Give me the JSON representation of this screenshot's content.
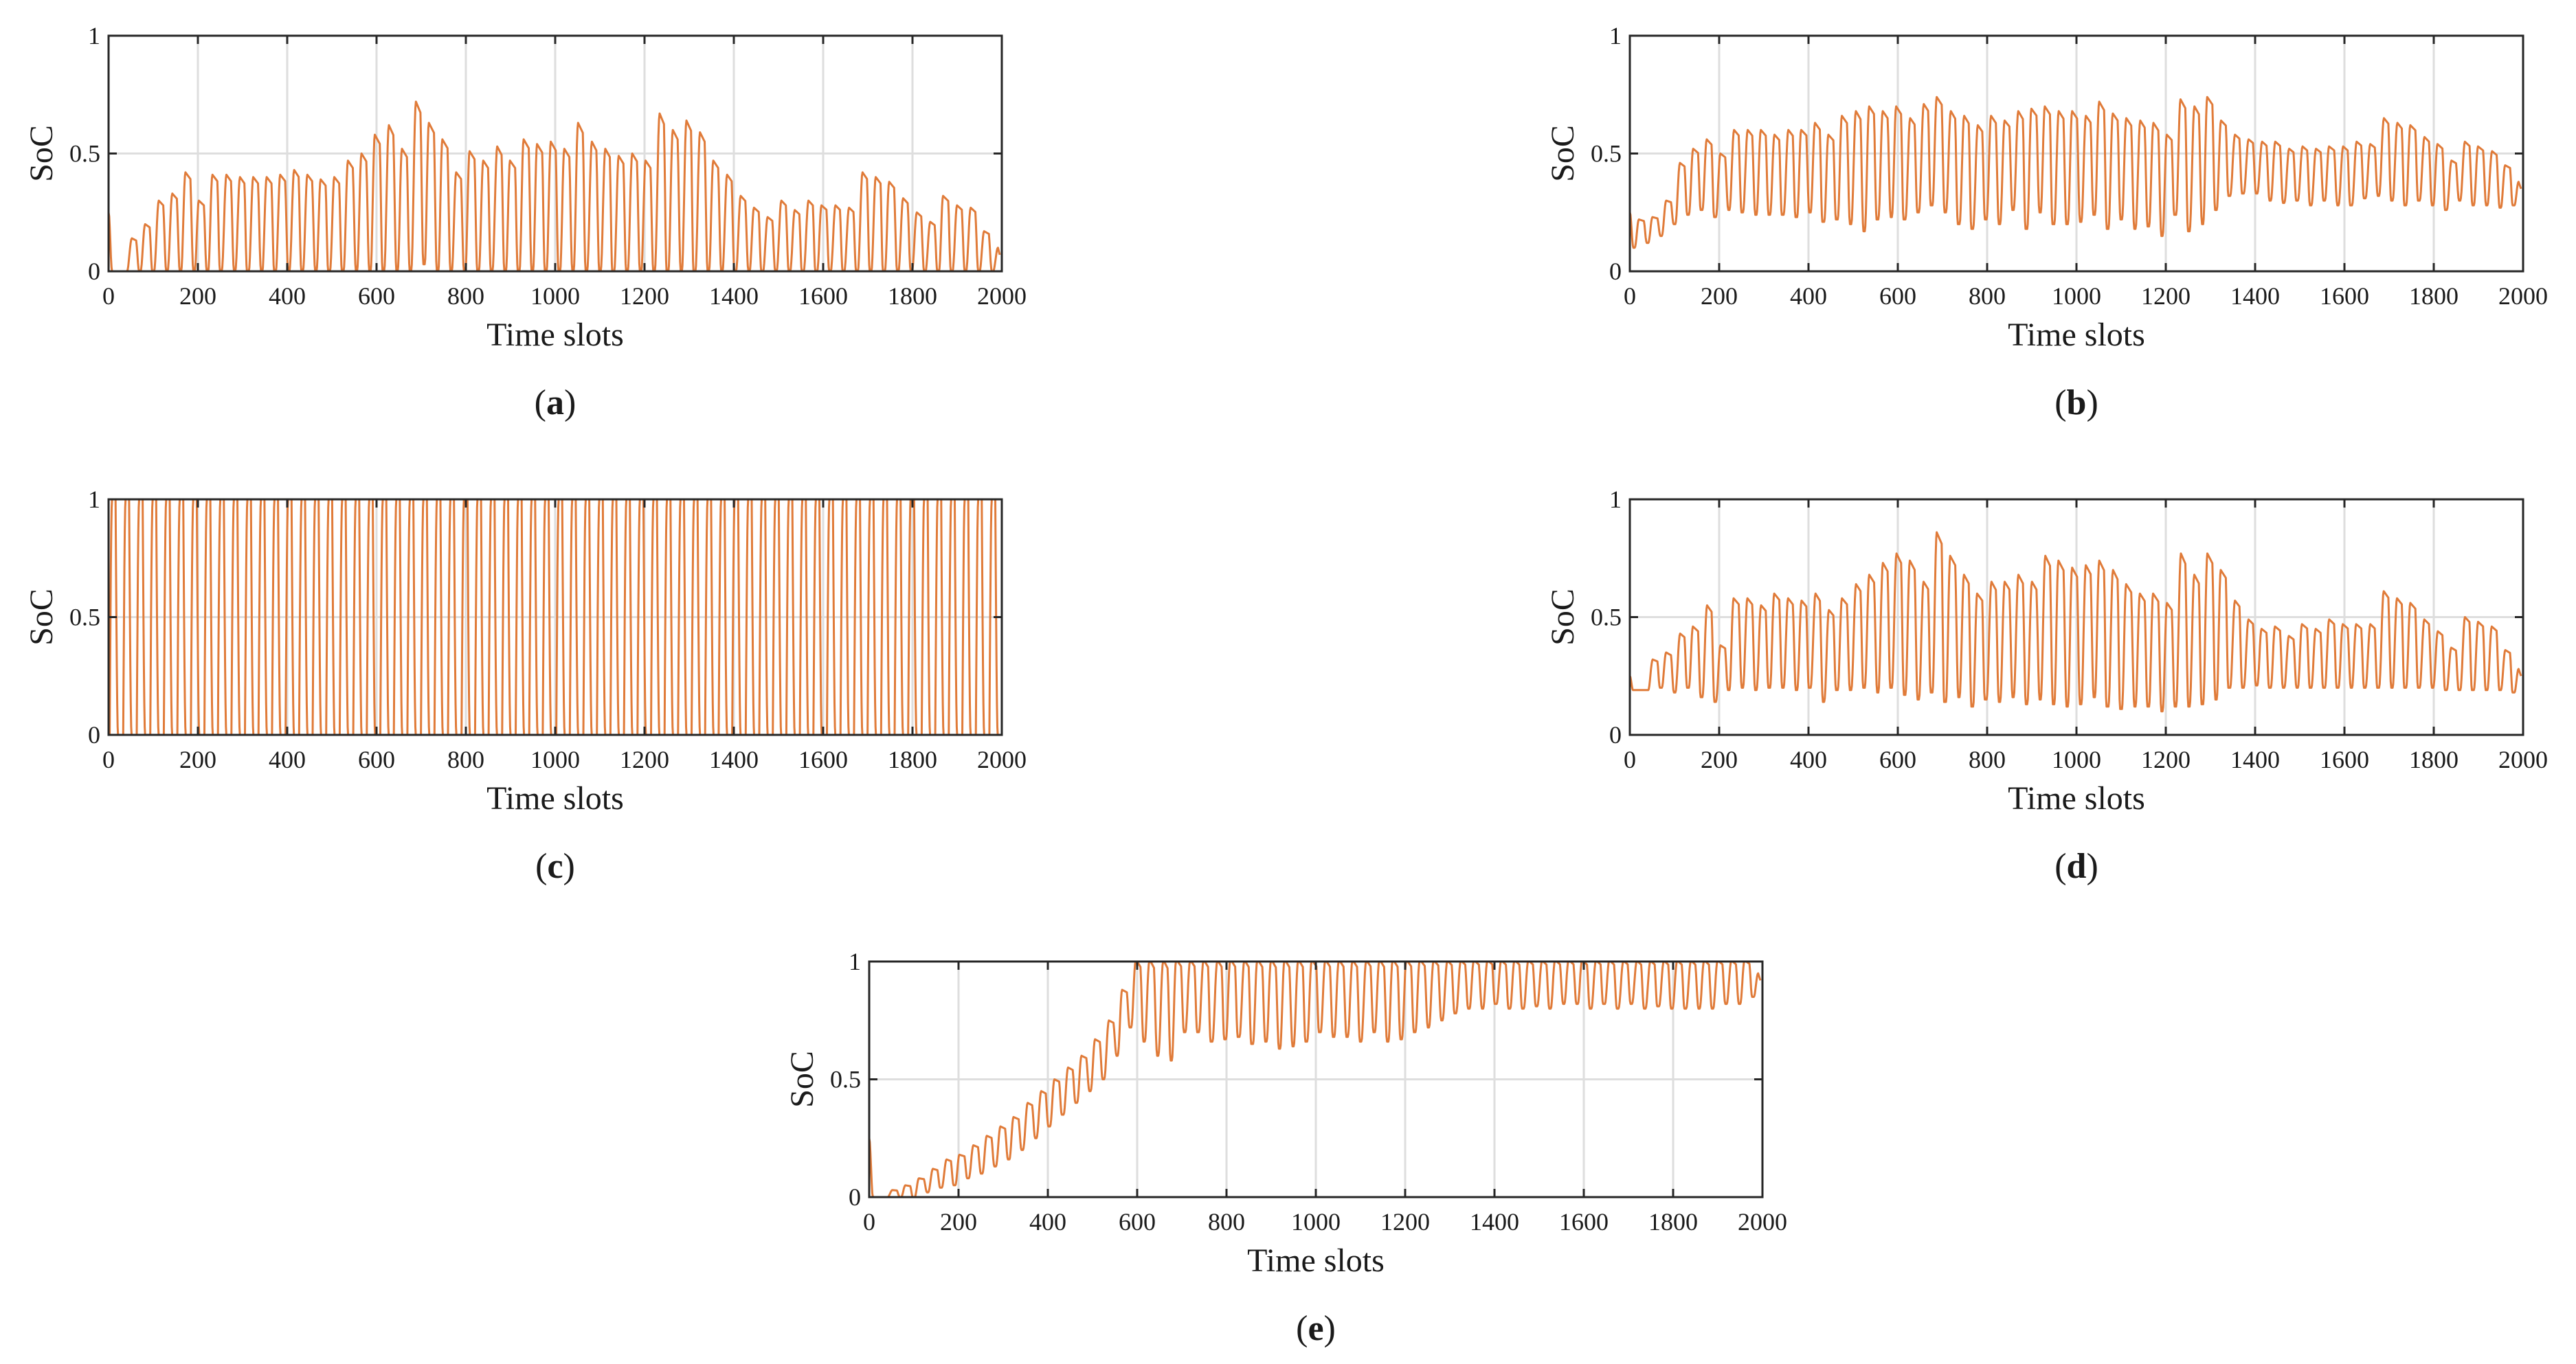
{
  "chart_data": [
    {
      "type": "line",
      "caption": "(a)",
      "xlabel": "Time slots",
      "ylabel": "SoC",
      "xlim": [
        0,
        2000
      ],
      "ylim": [
        0,
        1
      ],
      "xticks": [
        0,
        200,
        400,
        600,
        800,
        1000,
        1200,
        1400,
        1600,
        1800,
        2000
      ],
      "yticks": [
        0,
        0.5,
        1
      ],
      "grid": true,
      "series": [
        {
          "color": "#e07b39",
          "style": "daily-cycle",
          "start": 0.25,
          "peaks": [
            0.0,
            0.14,
            0.2,
            0.3,
            0.33,
            0.42,
            0.3,
            0.41,
            0.41,
            0.4,
            0.4,
            0.4,
            0.41,
            0.43,
            0.41,
            0.39,
            0.4,
            0.47,
            0.5,
            0.58,
            0.62,
            0.52,
            0.72,
            0.63,
            0.56,
            0.42,
            0.51,
            0.47,
            0.53,
            0.47,
            0.56,
            0.54,
            0.55,
            0.52,
            0.63,
            0.55,
            0.52,
            0.49,
            0.5,
            0.47,
            0.67,
            0.6,
            0.64,
            0.59,
            0.47,
            0.41,
            0.32,
            0.27,
            0.23,
            0.3,
            0.26,
            0.3,
            0.28,
            0.28,
            0.27,
            0.42,
            0.4,
            0.38,
            0.31,
            0.25,
            0.21,
            0.32,
            0.28,
            0.27,
            0.17,
            0.1
          ],
          "troughs": [
            0.0,
            0.0,
            0.0,
            0.0,
            0.0,
            0.0,
            0.0,
            0.0,
            0.0,
            0.0,
            0.0,
            0.0,
            0.0,
            0.0,
            0.0,
            0.0,
            0.0,
            0.0,
            0.0,
            0.0,
            0.0,
            0.0,
            0.0,
            0.03,
            0.0,
            0.0,
            0.0,
            0.0,
            0.0,
            0.0,
            0.0,
            0.0,
            0.0,
            0.0,
            0.0,
            0.0,
            0.0,
            0.0,
            0.0,
            0.0,
            0.0,
            0.0,
            0.0,
            0.0,
            0.0,
            0.0,
            0.0,
            0.0,
            0.0,
            0.0,
            0.0,
            0.0,
            0.0,
            0.0,
            0.0,
            0.0,
            0.0,
            0.0,
            0.0,
            0.0,
            0.0,
            0.0,
            0.0,
            0.0,
            0.0,
            0.0
          ]
        }
      ]
    },
    {
      "type": "line",
      "caption": "(b)",
      "xlabel": "Time slots",
      "ylabel": "SoC",
      "xlim": [
        0,
        2000
      ],
      "ylim": [
        0,
        1
      ],
      "xticks": [
        0,
        200,
        400,
        600,
        800,
        1000,
        1200,
        1400,
        1600,
        1800,
        2000
      ],
      "yticks": [
        0,
        0.5,
        1
      ],
      "grid": true,
      "series": [
        {
          "color": "#e07b39",
          "style": "daily-cycle",
          "start": 0.25,
          "peaks": [
            0.22,
            0.23,
            0.3,
            0.46,
            0.52,
            0.56,
            0.5,
            0.6,
            0.6,
            0.6,
            0.58,
            0.6,
            0.6,
            0.63,
            0.58,
            0.66,
            0.68,
            0.7,
            0.68,
            0.7,
            0.65,
            0.71,
            0.74,
            0.68,
            0.66,
            0.62,
            0.66,
            0.64,
            0.68,
            0.69,
            0.7,
            0.68,
            0.68,
            0.66,
            0.72,
            0.67,
            0.65,
            0.64,
            0.63,
            0.58,
            0.73,
            0.7,
            0.74,
            0.64,
            0.58,
            0.56,
            0.55,
            0.55,
            0.52,
            0.53,
            0.52,
            0.53,
            0.53,
            0.55,
            0.54,
            0.65,
            0.63,
            0.62,
            0.57,
            0.54,
            0.47,
            0.55,
            0.53,
            0.51,
            0.45,
            0.38
          ],
          "troughs": [
            0.1,
            0.12,
            0.15,
            0.2,
            0.24,
            0.26,
            0.23,
            0.26,
            0.25,
            0.24,
            0.24,
            0.24,
            0.23,
            0.25,
            0.21,
            0.22,
            0.2,
            0.17,
            0.22,
            0.23,
            0.22,
            0.25,
            0.28,
            0.25,
            0.2,
            0.18,
            0.22,
            0.2,
            0.26,
            0.18,
            0.25,
            0.2,
            0.2,
            0.21,
            0.24,
            0.18,
            0.22,
            0.18,
            0.19,
            0.15,
            0.24,
            0.17,
            0.2,
            0.26,
            0.32,
            0.33,
            0.33,
            0.3,
            0.29,
            0.3,
            0.28,
            0.3,
            0.28,
            0.28,
            0.31,
            0.32,
            0.3,
            0.28,
            0.3,
            0.28,
            0.26,
            0.3,
            0.28,
            0.28,
            0.27,
            0.28
          ]
        }
      ]
    },
    {
      "type": "line",
      "caption": "(c)",
      "xlabel": "Time slots",
      "ylabel": "SoC",
      "xlim": [
        0,
        2000
      ],
      "ylim": [
        0,
        1
      ],
      "xticks": [
        0,
        200,
        400,
        600,
        800,
        1000,
        1200,
        1400,
        1600,
        1800,
        2000
      ],
      "yticks": [
        0,
        0.5,
        1
      ],
      "grid": true,
      "series": [
        {
          "color": "#e07b39",
          "style": "full-cycle",
          "start": 0.25,
          "peak": 1.0,
          "trough": 0.0,
          "cycles": 66
        }
      ]
    },
    {
      "type": "line",
      "caption": "(d)",
      "xlabel": "Time slots",
      "ylabel": "SoC",
      "xlim": [
        0,
        2000
      ],
      "ylim": [
        0,
        1
      ],
      "xticks": [
        0,
        200,
        400,
        600,
        800,
        1000,
        1200,
        1400,
        1600,
        1800,
        2000
      ],
      "yticks": [
        0,
        0.5,
        1
      ],
      "grid": true,
      "series": [
        {
          "color": "#e07b39",
          "style": "daily-cycle",
          "start": 0.25,
          "peaks": [
            0.19,
            0.32,
            0.35,
            0.43,
            0.46,
            0.55,
            0.38,
            0.58,
            0.58,
            0.55,
            0.6,
            0.58,
            0.57,
            0.6,
            0.53,
            0.58,
            0.64,
            0.68,
            0.73,
            0.77,
            0.74,
            0.65,
            0.86,
            0.76,
            0.68,
            0.6,
            0.65,
            0.65,
            0.68,
            0.65,
            0.76,
            0.74,
            0.71,
            0.72,
            0.74,
            0.7,
            0.64,
            0.6,
            0.6,
            0.56,
            0.77,
            0.68,
            0.77,
            0.7,
            0.57,
            0.49,
            0.45,
            0.46,
            0.42,
            0.47,
            0.45,
            0.49,
            0.47,
            0.47,
            0.47,
            0.61,
            0.58,
            0.56,
            0.49,
            0.44,
            0.37,
            0.5,
            0.48,
            0.46,
            0.36,
            0.28
          ],
          "troughs": [
            0.19,
            0.19,
            0.2,
            0.18,
            0.2,
            0.16,
            0.14,
            0.19,
            0.2,
            0.19,
            0.2,
            0.2,
            0.19,
            0.2,
            0.14,
            0.19,
            0.19,
            0.2,
            0.18,
            0.2,
            0.17,
            0.15,
            0.18,
            0.14,
            0.16,
            0.12,
            0.15,
            0.14,
            0.16,
            0.13,
            0.15,
            0.13,
            0.12,
            0.13,
            0.16,
            0.12,
            0.11,
            0.12,
            0.12,
            0.1,
            0.12,
            0.12,
            0.13,
            0.15,
            0.2,
            0.2,
            0.21,
            0.2,
            0.2,
            0.2,
            0.2,
            0.2,
            0.2,
            0.2,
            0.2,
            0.2,
            0.2,
            0.2,
            0.2,
            0.2,
            0.19,
            0.19,
            0.19,
            0.19,
            0.19,
            0.18
          ]
        }
      ]
    },
    {
      "type": "line",
      "caption": "(e)",
      "xlabel": "Time slots",
      "ylabel": "SoC",
      "xlim": [
        0,
        2000
      ],
      "ylim": [
        0,
        1
      ],
      "xticks": [
        0,
        200,
        400,
        600,
        800,
        1000,
        1200,
        1400,
        1600,
        1800,
        2000
      ],
      "yticks": [
        0,
        0.5,
        1
      ],
      "grid": true,
      "series": [
        {
          "color": "#e07b39",
          "style": "daily-cycle",
          "start": 0.25,
          "peaks": [
            0.0,
            0.03,
            0.05,
            0.08,
            0.12,
            0.16,
            0.18,
            0.22,
            0.26,
            0.3,
            0.34,
            0.4,
            0.45,
            0.5,
            0.55,
            0.6,
            0.67,
            0.75,
            0.88,
            1.0,
            1.0,
            1.0,
            1.0,
            1.0,
            1.0,
            1.0,
            1.0,
            1.0,
            1.0,
            1.0,
            1.0,
            1.0,
            1.0,
            1.0,
            1.0,
            1.0,
            1.0,
            1.0,
            1.0,
            1.0,
            1.0,
            1.0,
            1.0,
            1.0,
            1.0,
            1.0,
            1.0,
            1.0,
            1.0,
            1.0,
            1.0,
            1.0,
            1.0,
            1.0,
            1.0,
            1.0,
            1.0,
            1.0,
            1.0,
            1.0,
            1.0,
            1.0,
            1.0,
            1.0,
            1.0,
            0.95
          ],
          "troughs": [
            0.0,
            0.0,
            0.0,
            0.0,
            0.02,
            0.04,
            0.05,
            0.08,
            0.1,
            0.13,
            0.16,
            0.2,
            0.25,
            0.3,
            0.35,
            0.4,
            0.45,
            0.5,
            0.6,
            0.72,
            0.66,
            0.6,
            0.58,
            0.7,
            0.7,
            0.66,
            0.67,
            0.68,
            0.65,
            0.66,
            0.63,
            0.64,
            0.66,
            0.7,
            0.68,
            0.68,
            0.66,
            0.7,
            0.66,
            0.67,
            0.7,
            0.72,
            0.75,
            0.78,
            0.8,
            0.8,
            0.82,
            0.8,
            0.8,
            0.81,
            0.8,
            0.82,
            0.82,
            0.8,
            0.82,
            0.8,
            0.82,
            0.8,
            0.81,
            0.8,
            0.8,
            0.8,
            0.8,
            0.82,
            0.82,
            0.85
          ]
        }
      ]
    }
  ]
}
